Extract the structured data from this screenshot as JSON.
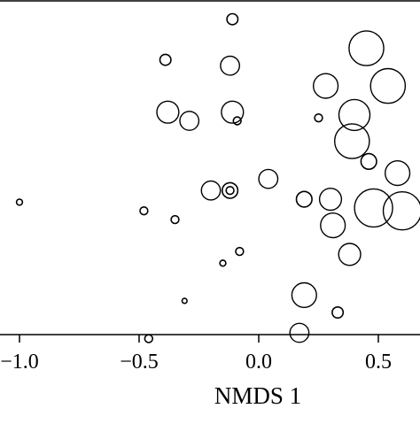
{
  "chart_data": {
    "type": "scatter",
    "title": "",
    "xlabel": "NMDS 1",
    "ylabel": "",
    "x_ticks": [
      "−1.0",
      "−0.5",
      "0.0",
      "0.5"
    ],
    "x_tick_values": [
      -1.0,
      -0.5,
      0.0,
      0.5
    ],
    "xlim": [
      -1.08,
      0.67
    ],
    "ylim": [
      -0.62,
      0.52
    ],
    "grid": false,
    "legend": "none",
    "point_color": "#000000",
    "size_encoding": "bubble area",
    "points": [
      {
        "x": -0.11,
        "y": 0.46,
        "size": 1
      },
      {
        "x": 0.45,
        "y": 0.36,
        "size": 10
      },
      {
        "x": -0.39,
        "y": 0.32,
        "size": 1
      },
      {
        "x": -0.12,
        "y": 0.3,
        "size": 3
      },
      {
        "x": 0.28,
        "y": 0.23,
        "size": 5
      },
      {
        "x": 0.54,
        "y": 0.23,
        "size": 10
      },
      {
        "x": -0.38,
        "y": 0.14,
        "size": 4
      },
      {
        "x": -0.11,
        "y": 0.14,
        "size": 4
      },
      {
        "x": 0.4,
        "y": 0.13,
        "size": 8
      },
      {
        "x": -0.29,
        "y": 0.11,
        "size": 3
      },
      {
        "x": 0.25,
        "y": 0.12,
        "size": 0.5
      },
      {
        "x": -0.09,
        "y": 0.11,
        "size": 0.5
      },
      {
        "x": 0.39,
        "y": 0.04,
        "size": 10
      },
      {
        "x": 0.46,
        "y": -0.03,
        "size": 2
      },
      {
        "x": 0.58,
        "y": -0.07,
        "size": 5
      },
      {
        "x": 0.04,
        "y": -0.09,
        "size": 3
      },
      {
        "x": -0.2,
        "y": -0.13,
        "size": 3
      },
      {
        "x": -0.12,
        "y": -0.13,
        "size": 2
      },
      {
        "x": -0.12,
        "y": -0.13,
        "size": 0.5
      },
      {
        "x": 0.19,
        "y": -0.16,
        "size": 2
      },
      {
        "x": 0.3,
        "y": -0.16,
        "size": 4
      },
      {
        "x": 0.48,
        "y": -0.19,
        "size": 12
      },
      {
        "x": 0.6,
        "y": -0.2,
        "size": 12
      },
      {
        "x": -1.0,
        "y": -0.17,
        "size": 0.3
      },
      {
        "x": -0.48,
        "y": -0.2,
        "size": 0.5
      },
      {
        "x": -0.35,
        "y": -0.23,
        "size": 0.5
      },
      {
        "x": 0.31,
        "y": -0.25,
        "size": 5
      },
      {
        "x": -0.08,
        "y": -0.34,
        "size": 0.5
      },
      {
        "x": 0.38,
        "y": -0.35,
        "size": 4
      },
      {
        "x": -0.15,
        "y": -0.38,
        "size": 0.3
      },
      {
        "x": 0.19,
        "y": -0.49,
        "size": 5
      },
      {
        "x": -0.31,
        "y": -0.51,
        "size": 0.2
      },
      {
        "x": 0.33,
        "y": -0.55,
        "size": 1
      },
      {
        "x": 0.17,
        "y": -0.62,
        "size": 3
      },
      {
        "x": -0.46,
        "y": -0.64,
        "size": 0.5
      }
    ]
  }
}
